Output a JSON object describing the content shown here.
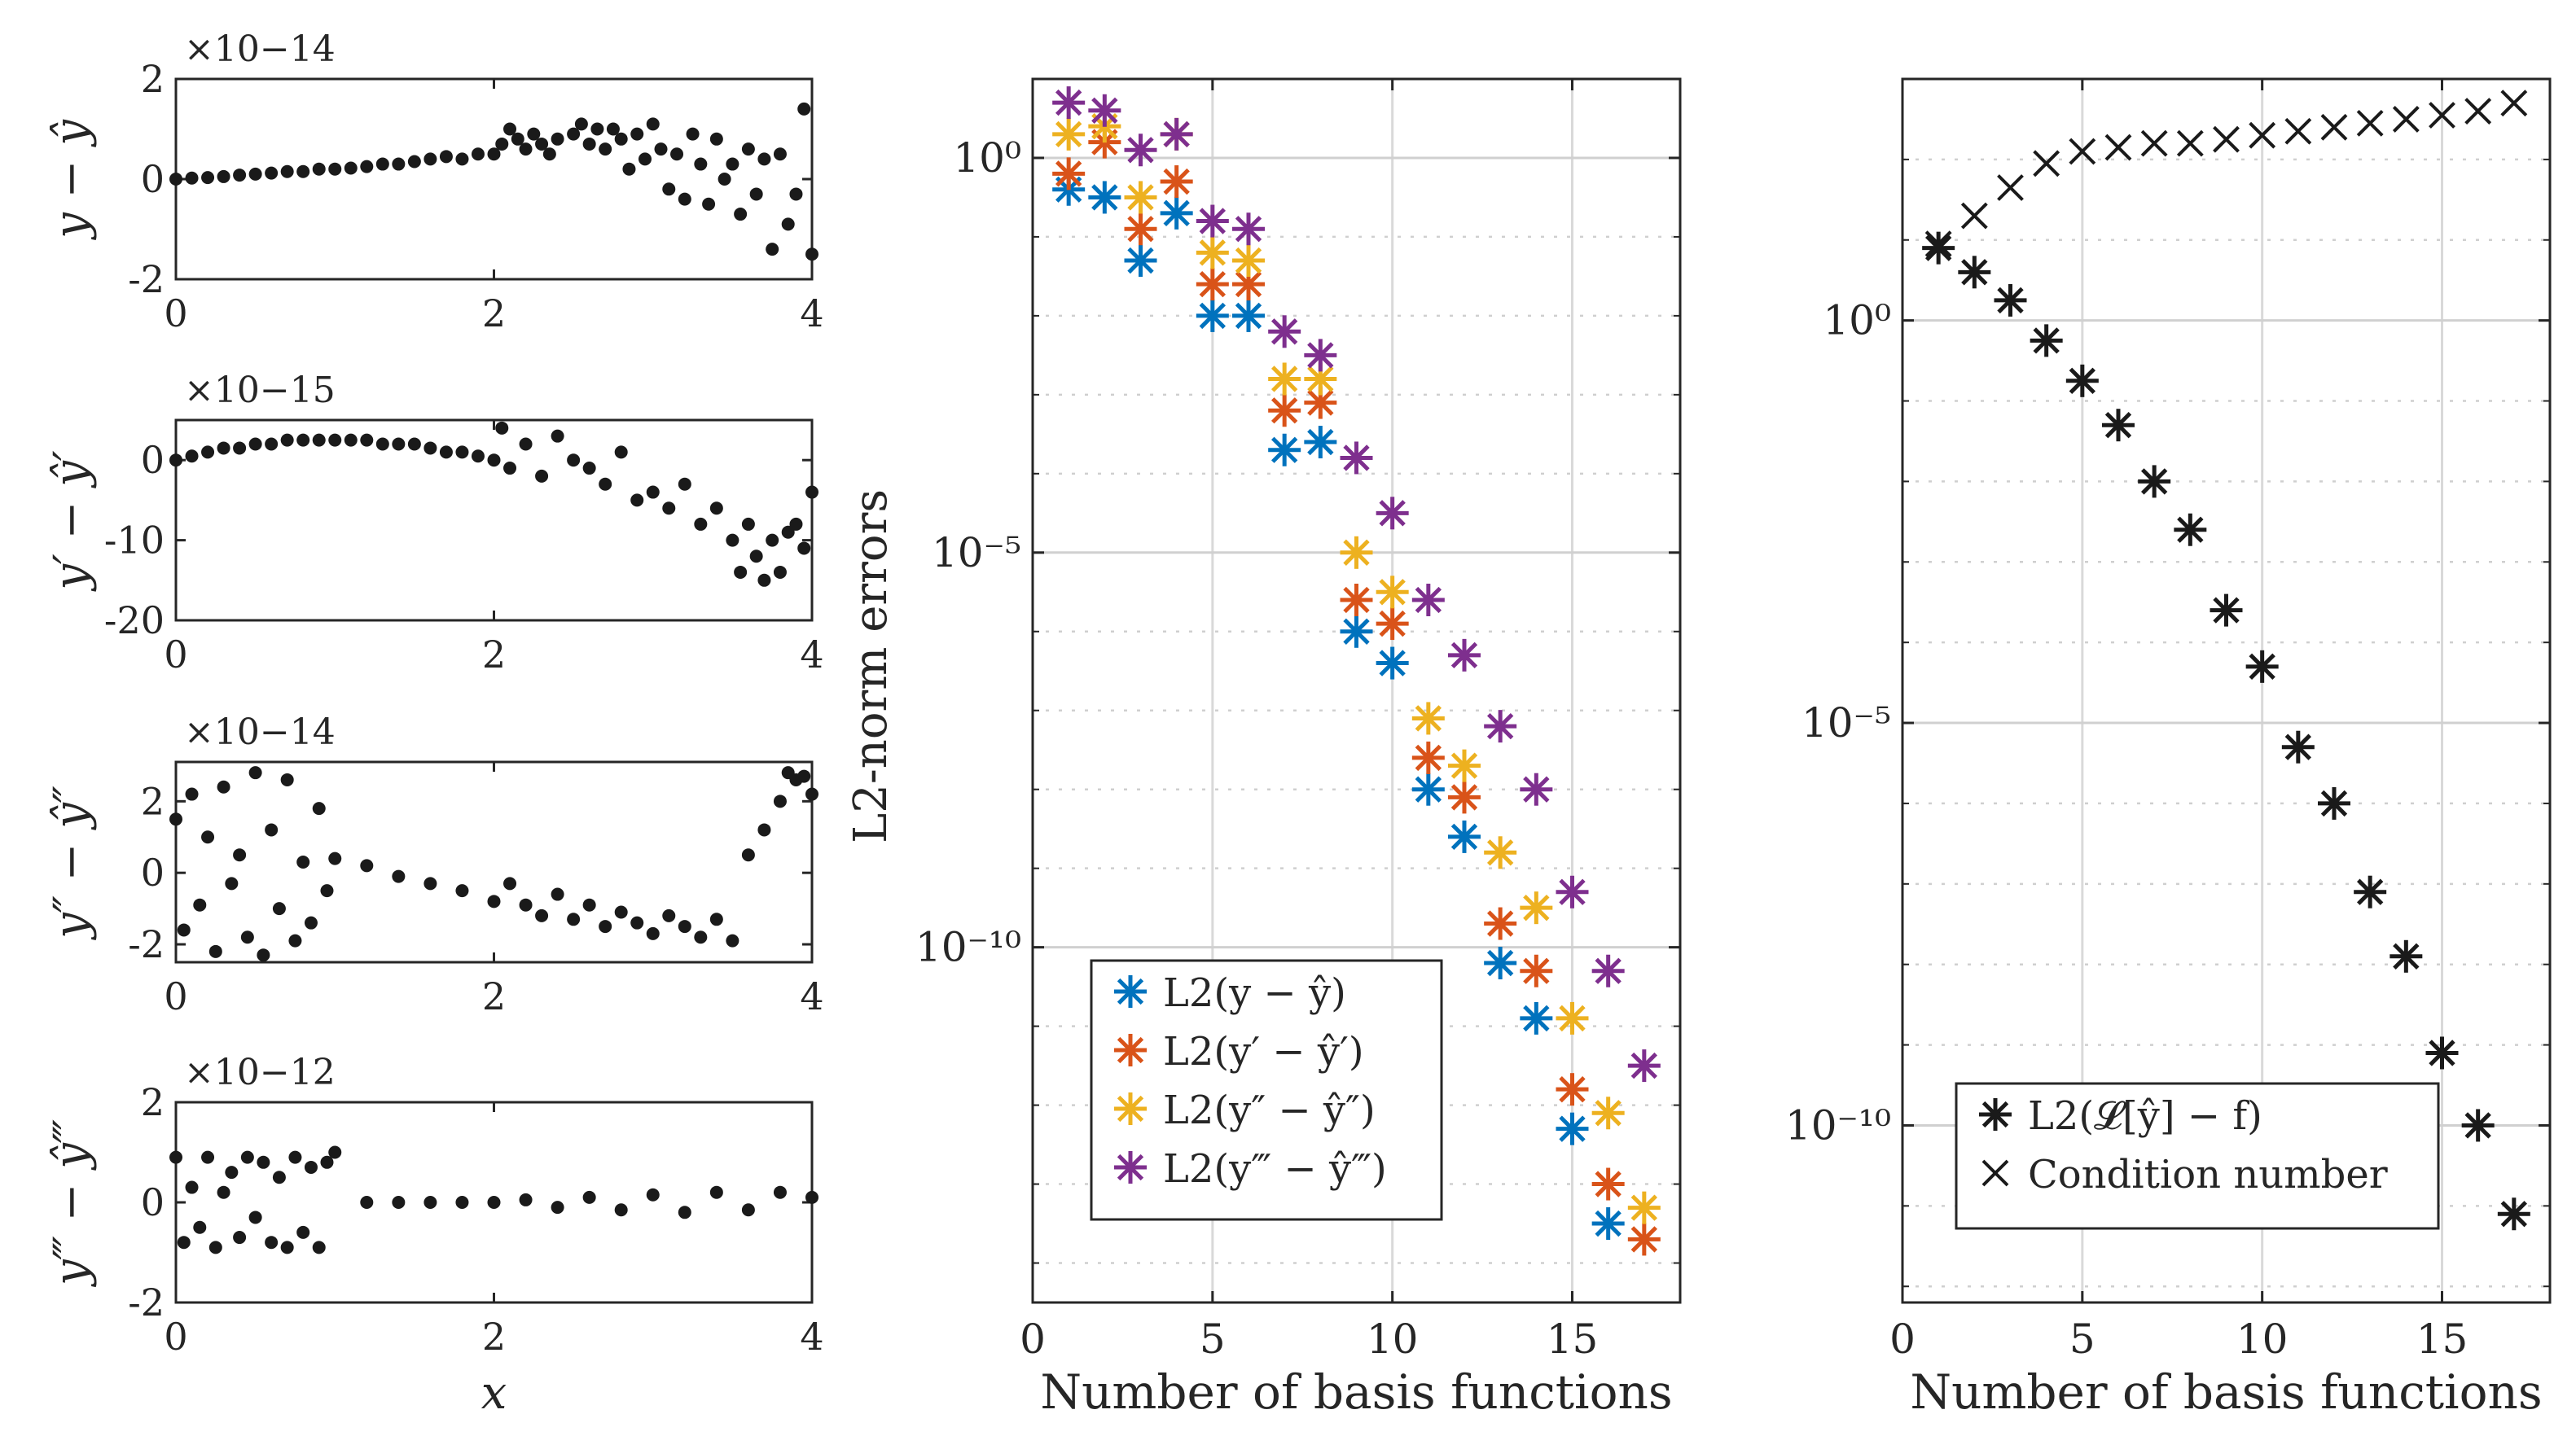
{
  "chart_data": [
    {
      "id": "p1",
      "type": "scatter",
      "ylabel": "y − ŷ",
      "xlabel": "",
      "exponent": "×10−14",
      "xlim": [
        0,
        4
      ],
      "ylim": [
        -2,
        2
      ],
      "xticks": [
        "0",
        "2",
        "4"
      ],
      "yticks": [
        "-2",
        "0",
        "2"
      ],
      "ytick_values": [
        -2,
        0,
        2
      ],
      "x": [
        0,
        0.1,
        0.2,
        0.3,
        0.4,
        0.5,
        0.6,
        0.7,
        0.8,
        0.9,
        1,
        1.1,
        1.2,
        1.3,
        1.4,
        1.5,
        1.6,
        1.7,
        1.8,
        1.9,
        2,
        2.05,
        2.1,
        2.15,
        2.2,
        2.25,
        2.3,
        2.35,
        2.4,
        2.5,
        2.55,
        2.6,
        2.65,
        2.7,
        2.75,
        2.8,
        2.85,
        2.9,
        2.95,
        3,
        3.05,
        3.1,
        3.15,
        3.2,
        3.25,
        3.3,
        3.35,
        3.4,
        3.45,
        3.5,
        3.55,
        3.6,
        3.65,
        3.7,
        3.75,
        3.8,
        3.85,
        3.9,
        3.95,
        4
      ],
      "y": [
        0,
        0.02,
        0.03,
        0.05,
        0.08,
        0.1,
        0.12,
        0.15,
        0.15,
        0.2,
        0.2,
        0.22,
        0.25,
        0.3,
        0.3,
        0.35,
        0.4,
        0.45,
        0.4,
        0.5,
        0.5,
        0.7,
        1.0,
        0.8,
        0.6,
        0.9,
        0.7,
        0.5,
        0.8,
        0.9,
        1.1,
        0.7,
        1.0,
        0.6,
        1.0,
        0.8,
        0.2,
        0.9,
        0.4,
        1.1,
        0.6,
        -0.2,
        0.5,
        -0.4,
        0.9,
        0.3,
        -0.5,
        0.8,
        0,
        0.3,
        -0.7,
        0.6,
        -0.3,
        0.4,
        -1.4,
        0.5,
        -0.9,
        -0.3,
        1.4,
        -1.5
      ]
    },
    {
      "id": "p2",
      "type": "scatter",
      "ylabel": "y′ − ŷ′",
      "xlabel": "",
      "exponent": "×10−15",
      "xlim": [
        0,
        4
      ],
      "ylim": [
        -20,
        5
      ],
      "xticks": [
        "0",
        "2",
        "4"
      ],
      "yticks": [
        "-20",
        "-10",
        "0"
      ],
      "ytick_values": [
        -20,
        -10,
        0
      ],
      "x": [
        0,
        0.1,
        0.2,
        0.3,
        0.4,
        0.5,
        0.6,
        0.7,
        0.8,
        0.9,
        1,
        1.1,
        1.2,
        1.3,
        1.4,
        1.5,
        1.6,
        1.7,
        1.8,
        1.9,
        2,
        2.05,
        2.1,
        2.2,
        2.3,
        2.4,
        2.5,
        2.6,
        2.7,
        2.8,
        2.9,
        3,
        3.1,
        3.2,
        3.3,
        3.4,
        3.5,
        3.55,
        3.6,
        3.65,
        3.7,
        3.75,
        3.8,
        3.85,
        3.9,
        3.95,
        4
      ],
      "y": [
        0,
        0.5,
        1,
        1.5,
        1.5,
        2,
        2,
        2.5,
        2.5,
        2.5,
        2.5,
        2.5,
        2.5,
        2,
        2,
        2,
        1.5,
        1,
        1,
        0.5,
        0,
        4,
        -1,
        2,
        -2,
        3,
        0,
        -1,
        -3,
        1,
        -5,
        -4,
        -6,
        -3,
        -8,
        -6,
        -10,
        -14,
        -8,
        -12,
        -15,
        -10,
        -14,
        -9,
        -8,
        -11,
        -4
      ]
    },
    {
      "id": "p3",
      "type": "scatter",
      "ylabel": "y″ − ŷ″",
      "xlabel": "",
      "exponent": "×10−14",
      "xlim": [
        0,
        4
      ],
      "ylim": [
        -2.5,
        3.1
      ],
      "xticks": [
        "0",
        "2",
        "4"
      ],
      "yticks": [
        "-2",
        "0",
        "2"
      ],
      "ytick_values": [
        -2,
        0,
        2
      ],
      "x": [
        0,
        0.05,
        0.1,
        0.15,
        0.2,
        0.25,
        0.3,
        0.35,
        0.4,
        0.45,
        0.5,
        0.55,
        0.6,
        0.65,
        0.7,
        0.75,
        0.8,
        0.85,
        0.9,
        0.95,
        1,
        1.2,
        1.4,
        1.6,
        1.8,
        2,
        2.1,
        2.2,
        2.3,
        2.4,
        2.5,
        2.6,
        2.7,
        2.8,
        2.9,
        3,
        3.1,
        3.2,
        3.3,
        3.4,
        3.5,
        3.6,
        3.7,
        3.8,
        3.85,
        3.9,
        3.95,
        4
      ],
      "y": [
        1.5,
        -1.6,
        2.2,
        -0.9,
        1.0,
        -2.2,
        2.4,
        -0.3,
        0.5,
        -1.8,
        2.8,
        -2.3,
        1.2,
        -1.0,
        2.6,
        -1.9,
        0.3,
        -1.4,
        1.8,
        -0.5,
        0.4,
        0.2,
        -0.1,
        -0.3,
        -0.5,
        -0.8,
        -0.3,
        -0.9,
        -1.2,
        -0.6,
        -1.3,
        -0.9,
        -1.5,
        -1.1,
        -1.4,
        -1.7,
        -1.2,
        -1.5,
        -1.8,
        -1.3,
        -1.9,
        0.5,
        1.2,
        2.0,
        2.8,
        2.6,
        2.7,
        2.2
      ]
    },
    {
      "id": "p4",
      "type": "scatter",
      "ylabel": "y‴ − ŷ‴",
      "xlabel": "x",
      "exponent": "×10−12",
      "xlim": [
        0,
        4
      ],
      "ylim": [
        -2,
        2
      ],
      "xticks": [
        "0",
        "2",
        "4"
      ],
      "yticks": [
        "-2",
        "0",
        "2"
      ],
      "ytick_values": [
        -2,
        0,
        2
      ],
      "x": [
        0,
        0.05,
        0.1,
        0.15,
        0.2,
        0.25,
        0.3,
        0.35,
        0.4,
        0.45,
        0.5,
        0.55,
        0.6,
        0.65,
        0.7,
        0.75,
        0.8,
        0.85,
        0.9,
        0.95,
        1,
        1.2,
        1.4,
        1.6,
        1.8,
        2,
        2.2,
        2.4,
        2.6,
        2.8,
        3,
        3.2,
        3.4,
        3.6,
        3.8,
        4
      ],
      "y": [
        0.9,
        -0.8,
        0.3,
        -0.5,
        0.9,
        -0.9,
        0.2,
        0.6,
        -0.7,
        0.9,
        -0.3,
        0.8,
        -0.8,
        0.5,
        -0.9,
        0.9,
        -0.6,
        0.7,
        -0.9,
        0.8,
        1.0,
        0,
        0,
        0,
        0,
        0,
        0.05,
        -0.1,
        0.1,
        -0.15,
        0.15,
        -0.2,
        0.2,
        -0.15,
        0.2,
        0.1
      ]
    },
    {
      "id": "p5",
      "type": "scatter",
      "xlabel": "Number of basis functions",
      "ylabel": "L2-norm errors",
      "yscale": "log",
      "xlim": [
        0,
        18
      ],
      "ylim": [
        -14.5,
        1
      ],
      "xticks": [
        "0",
        "5",
        "10",
        "15"
      ],
      "xtick_values": [
        0,
        5,
        10,
        15
      ],
      "ytick_labels": [
        "10⁰",
        "10⁻⁵",
        "10⁻¹⁰"
      ],
      "ytick_values": [
        0,
        -5,
        -10
      ],
      "legend_position": "bottom-left",
      "series": [
        {
          "name": "L2(y − ŷ)",
          "color": "#0072BD",
          "x": [
            1,
            2,
            3,
            4,
            5,
            6,
            7,
            8,
            9,
            10,
            11,
            12,
            13,
            14,
            15,
            16
          ],
          "log10_y": [
            -0.4,
            -0.5,
            -1.3,
            -0.7,
            -2.0,
            -2.0,
            -3.7,
            -3.6,
            -6.0,
            -6.4,
            -8.0,
            -8.6,
            -10.2,
            -10.9,
            -12.3,
            -13.5
          ]
        },
        {
          "name": "L2(y′ − ŷ′)",
          "color": "#D95319",
          "x": [
            1,
            2,
            3,
            4,
            5,
            6,
            7,
            8,
            9,
            10,
            11,
            12,
            13,
            14,
            15,
            16,
            17
          ],
          "log10_y": [
            -0.2,
            0.2,
            -0.9,
            -0.3,
            -1.6,
            -1.6,
            -3.2,
            -3.1,
            -5.6,
            -5.9,
            -7.6,
            -8.1,
            -9.7,
            -10.3,
            -11.8,
            -13.0,
            -13.7
          ]
        },
        {
          "name": "L2(y″ − ŷ″)",
          "color": "#EDB120",
          "x": [
            1,
            2,
            3,
            4,
            5,
            6,
            7,
            8,
            9,
            10,
            11,
            12,
            13,
            14,
            15,
            16,
            17
          ],
          "log10_y": [
            0.3,
            0.4,
            -0.5,
            0.3,
            -1.2,
            -1.3,
            -2.8,
            -2.8,
            -5.0,
            -5.5,
            -7.1,
            -7.7,
            -8.8,
            -9.5,
            -10.9,
            -12.1,
            -13.3
          ]
        },
        {
          "name": "L2(y‴ − ŷ‴)",
          "color": "#7E2F8E",
          "x": [
            1,
            2,
            3,
            4,
            5,
            6,
            7,
            8,
            9,
            10,
            11,
            12,
            13,
            14,
            15,
            16,
            17
          ],
          "log10_y": [
            0.7,
            0.6,
            0.1,
            0.3,
            -0.8,
            -0.9,
            -2.2,
            -2.5,
            -3.8,
            -4.5,
            -5.6,
            -6.3,
            -7.2,
            -8.0,
            -9.3,
            -10.3,
            -11.5
          ]
        }
      ]
    },
    {
      "id": "p6",
      "type": "scatter",
      "xlabel": "Number of basis functions",
      "ylabel": "",
      "yscale": "log",
      "xlim": [
        0,
        18
      ],
      "ylim": [
        -12.2,
        3
      ],
      "xticks": [
        "0",
        "5",
        "10",
        "15"
      ],
      "xtick_values": [
        0,
        5,
        10,
        15
      ],
      "ytick_labels": [
        "10⁰",
        "10⁻⁵",
        "10⁻¹⁰"
      ],
      "ytick_values": [
        0,
        -5,
        -10
      ],
      "legend_position": "bottom-right",
      "series": [
        {
          "name": "L2(𝓛[ŷ] − f)",
          "marker": "asterisk",
          "color": "#1a1a1a",
          "x": [
            1,
            2,
            3,
            4,
            5,
            6,
            7,
            8,
            9,
            10,
            11,
            12,
            13,
            14,
            15,
            16,
            17
          ],
          "log10_y": [
            0.9,
            0.6,
            0.25,
            -0.25,
            -0.75,
            -1.3,
            -2.0,
            -2.6,
            -3.6,
            -4.3,
            -5.3,
            -6.0,
            -7.1,
            -7.9,
            -9.1,
            -10.0,
            -11.1
          ]
        },
        {
          "name": "Condition number",
          "marker": "cross",
          "color": "#1a1a1a",
          "x": [
            1,
            2,
            3,
            4,
            5,
            6,
            7,
            8,
            9,
            10,
            11,
            12,
            13,
            14,
            15,
            16,
            17
          ],
          "log10_y": [
            0.95,
            1.3,
            1.65,
            1.95,
            2.1,
            2.15,
            2.2,
            2.2,
            2.25,
            2.3,
            2.35,
            2.4,
            2.45,
            2.5,
            2.55,
            2.6,
            2.7
          ]
        }
      ]
    }
  ]
}
